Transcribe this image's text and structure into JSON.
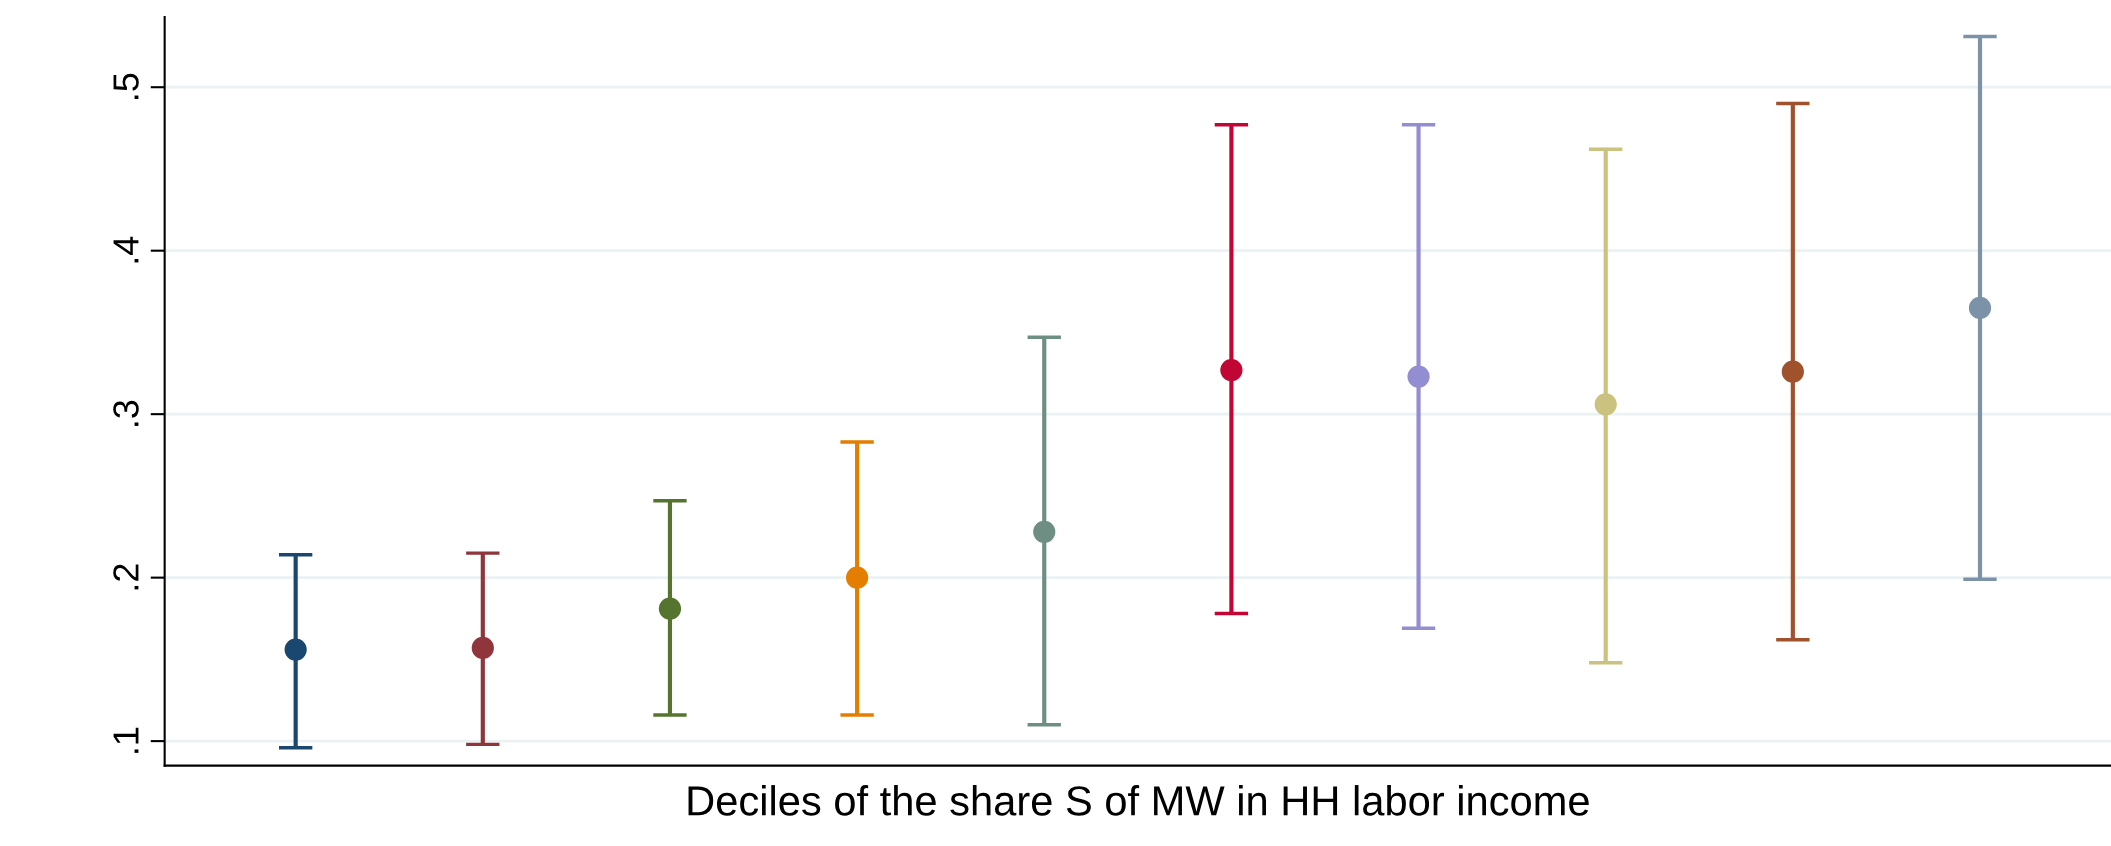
{
  "chart_data": {
    "type": "scatter",
    "xlabel": "Deciles of the share S of MW in HH labor income",
    "categories": [
      null,
      null,
      null,
      null,
      null,
      null,
      null,
      null,
      null,
      null
    ],
    "values": [
      0.156,
      0.157,
      0.181,
      0.2,
      0.228,
      0.327,
      0.323,
      0.306,
      0.326,
      0.365
    ],
    "errors": [
      [
        0.096,
        0.214
      ],
      [
        0.098,
        0.215
      ],
      [
        0.116,
        0.247
      ],
      [
        0.116,
        0.283
      ],
      [
        0.11,
        0.347
      ],
      [
        0.178,
        0.477
      ],
      [
        0.169,
        0.477
      ],
      [
        0.148,
        0.462
      ],
      [
        0.162,
        0.49
      ],
      [
        0.199,
        0.531
      ]
    ],
    "colors": [
      "#1a476f",
      "#90353b",
      "#55752f",
      "#e37e00",
      "#6e8e84",
      "#c10534",
      "#938dd2",
      "#cac27e",
      "#a0522d",
      "#7b92a8"
    ],
    "ylim": [
      0.085,
      0.543
    ],
    "yticks": [
      {
        "value": 0.1,
        "label": ".1"
      },
      {
        "value": 0.2,
        "label": ".2"
      },
      {
        "value": 0.3,
        "label": ".3"
      },
      {
        "value": 0.4,
        "label": ".4"
      },
      {
        "value": 0.5,
        "label": ".5"
      }
    ],
    "grid": "y",
    "marker": "circle",
    "tick_labels": "y"
  }
}
